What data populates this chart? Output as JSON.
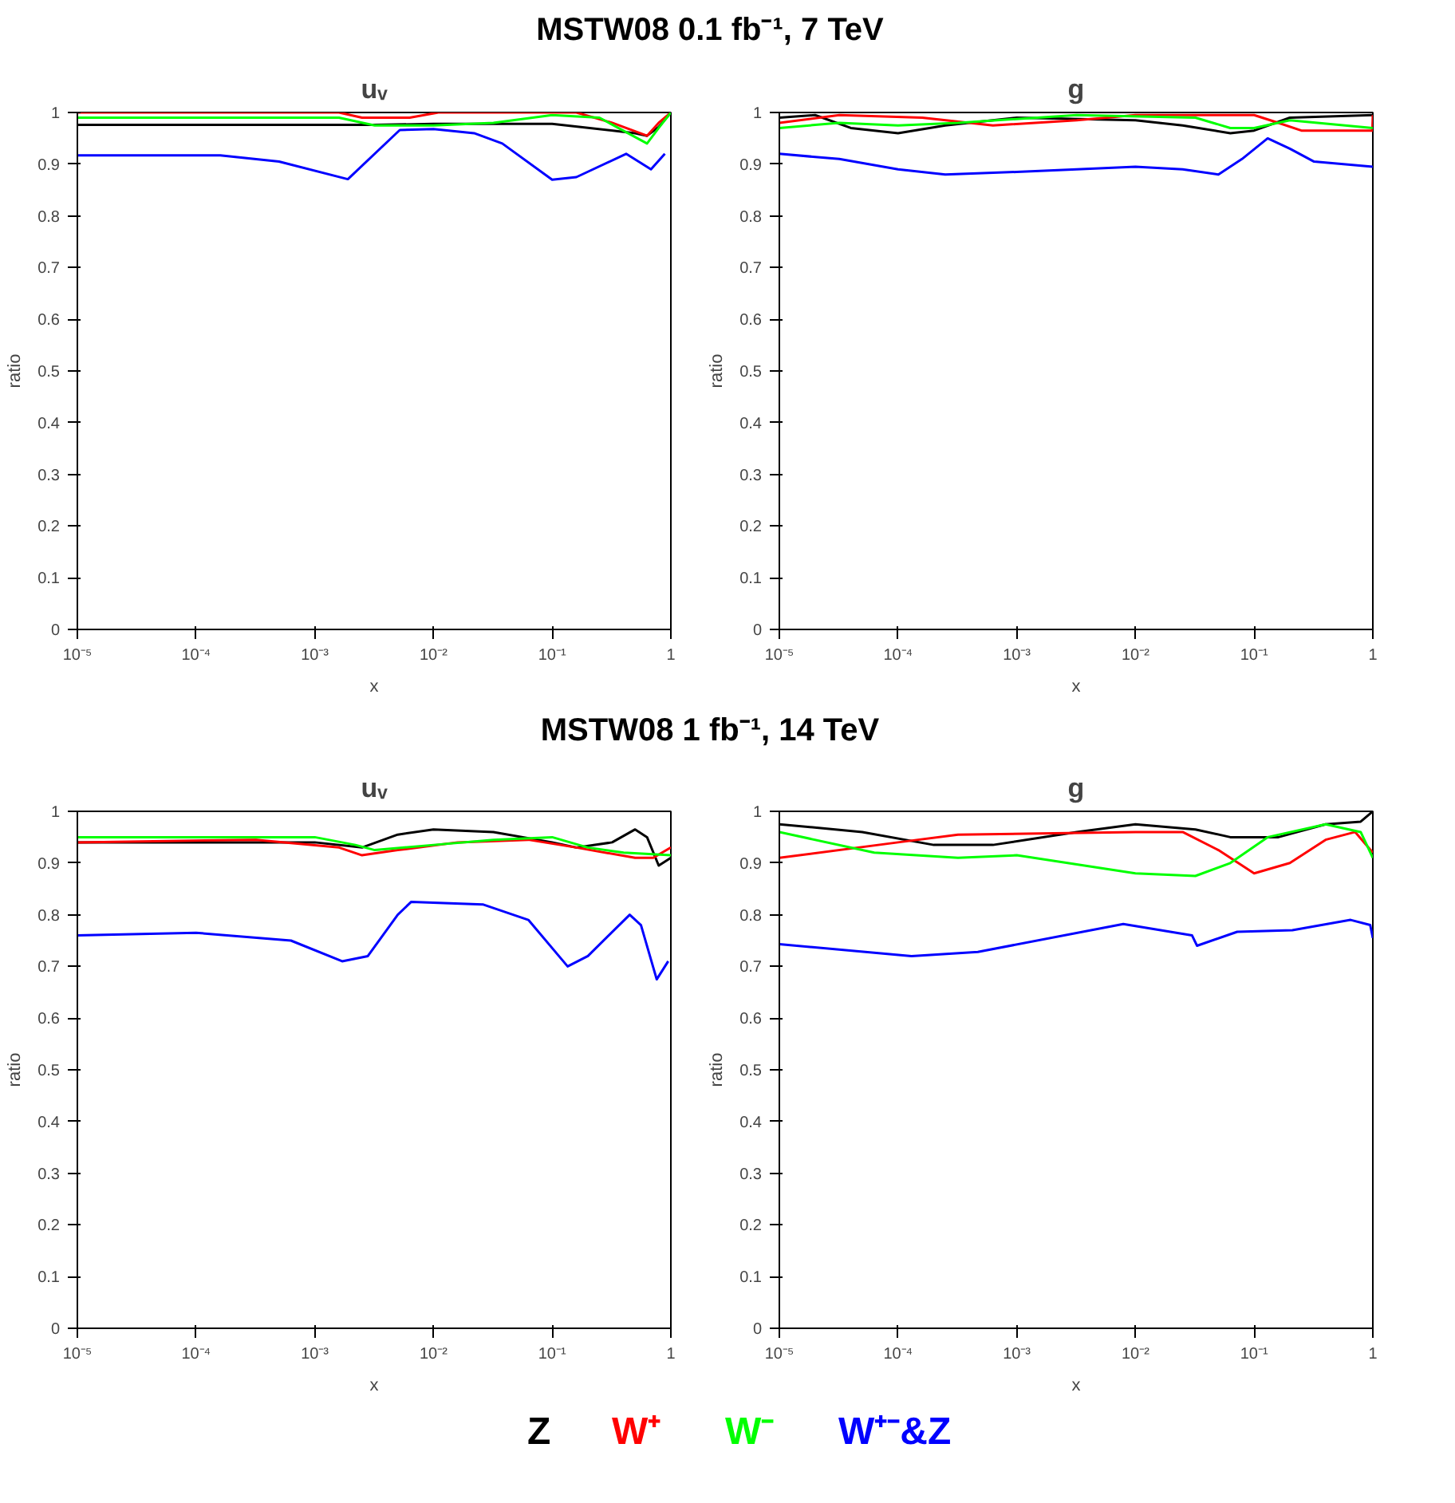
{
  "chart_data": [
    {
      "type": "line",
      "subtitle": "MSTW08 0.1 fb⁻¹, 7 TeV",
      "title": "uᵥ",
      "xlabel": "x",
      "ylabel": "ratio",
      "log": "x",
      "grid": false,
      "xlim": [
        1e-05,
        1
      ],
      "ylim": [
        0,
        1
      ],
      "xticks": [
        {
          "value": 1e-05,
          "label": "10⁻⁵"
        },
        {
          "value": 0.0001,
          "label": "10⁻⁴"
        },
        {
          "value": 0.001,
          "label": "10⁻³"
        },
        {
          "value": 0.01,
          "label": "10⁻²"
        },
        {
          "value": 0.1,
          "label": "10⁻¹"
        },
        1
      ],
      "yticks": [
        0,
        0.1,
        0.2,
        0.3,
        0.4,
        0.5,
        0.6,
        0.7,
        0.8,
        0.9,
        1
      ],
      "series": [
        {
          "color": "#000000",
          "x": [
            1e-05,
            0.0032,
            0.01,
            0.1,
            0.5,
            0.63,
            0.79,
            1
          ],
          "values": [
            0.976,
            0.976,
            0.978,
            0.978,
            0.96,
            0.955,
            0.972,
            1.0
          ]
        },
        {
          "color": "#ff0000",
          "x": [
            1e-05,
            0.0016,
            0.0025,
            0.0063,
            0.011,
            0.16,
            0.32,
            0.63,
            0.79,
            1
          ],
          "values": [
            1.0,
            1.0,
            0.99,
            0.99,
            1.0,
            1.0,
            0.98,
            0.955,
            0.98,
            1.0
          ]
        },
        {
          "color": "#00ff00",
          "x": [
            1e-05,
            0.0016,
            0.0032,
            0.01,
            0.032,
            0.1,
            0.25,
            0.63,
            0.79,
            1
          ],
          "values": [
            0.99,
            0.99,
            0.975,
            0.975,
            0.98,
            0.995,
            0.99,
            0.94,
            0.97,
            1.0
          ]
        },
        {
          "color": "#0000ff",
          "x": [
            1e-05,
            0.00016,
            0.0005,
            0.0019,
            0.0052,
            0.01,
            0.022,
            0.038,
            0.1,
            0.16,
            0.42,
            0.68,
            0.89
          ],
          "values": [
            0.917,
            0.917,
            0.905,
            0.871,
            0.966,
            0.968,
            0.96,
            0.94,
            0.87,
            0.875,
            0.92,
            0.89,
            0.92
          ]
        }
      ]
    },
    {
      "type": "line",
      "title": "g",
      "xlabel": "x",
      "ylabel": "ratio",
      "log": "x",
      "grid": false,
      "xlim": [
        1e-05,
        1
      ],
      "ylim": [
        0,
        1
      ],
      "xticks": [
        {
          "value": 1e-05,
          "label": "10⁻⁵"
        },
        {
          "value": 0.0001,
          "label": "10⁻⁴"
        },
        {
          "value": 0.001,
          "label": "10⁻³"
        },
        {
          "value": 0.01,
          "label": "10⁻²"
        },
        {
          "value": 0.1,
          "label": "10⁻¹"
        },
        1
      ],
      "yticks": [
        0,
        0.1,
        0.2,
        0.3,
        0.4,
        0.5,
        0.6,
        0.7,
        0.8,
        0.9,
        1
      ],
      "series": [
        {
          "color": "#000000",
          "x": [
            1e-05,
            2e-05,
            4e-05,
            0.0001,
            0.00025,
            0.001,
            0.01,
            0.025,
            0.063,
            0.1,
            0.2,
            1
          ],
          "values": [
            0.99,
            0.995,
            0.97,
            0.96,
            0.975,
            0.99,
            0.985,
            0.975,
            0.96,
            0.965,
            0.99,
            0.995
          ]
        },
        {
          "color": "#ff0000",
          "x": [
            1e-05,
            3.2e-05,
            0.00016,
            0.00063,
            0.0032,
            0.01,
            0.1,
            0.16,
            0.25,
            0.99,
            1
          ],
          "values": [
            0.98,
            0.995,
            0.99,
            0.975,
            0.985,
            0.995,
            0.995,
            0.98,
            0.965,
            0.965,
            0.995
          ]
        },
        {
          "color": "#00ff00",
          "x": [
            1e-05,
            3.2e-05,
            0.0001,
            0.00032,
            0.0032,
            0.032,
            0.063,
            0.1,
            0.2,
            1
          ],
          "values": [
            0.97,
            0.98,
            0.975,
            0.98,
            0.995,
            0.99,
            0.97,
            0.97,
            0.985,
            0.97
          ]
        },
        {
          "color": "#0000ff",
          "x": [
            1e-05,
            3.2e-05,
            0.0001,
            0.00025,
            0.001,
            0.0032,
            0.01,
            0.025,
            0.05,
            0.079,
            0.13,
            0.2,
            0.32,
            1
          ],
          "values": [
            0.92,
            0.91,
            0.89,
            0.88,
            0.885,
            0.89,
            0.895,
            0.89,
            0.88,
            0.91,
            0.95,
            0.93,
            0.905,
            0.895
          ]
        }
      ]
    },
    {
      "type": "line",
      "subtitle": "MSTW08 1 fb⁻¹, 14 TeV",
      "title": "uᵥ",
      "xlabel": "x",
      "ylabel": "ratio",
      "log": "x",
      "grid": false,
      "xlim": [
        1e-05,
        1
      ],
      "ylim": [
        0,
        1
      ],
      "xticks": [
        {
          "value": 1e-05,
          "label": "10⁻⁵"
        },
        {
          "value": 0.0001,
          "label": "10⁻⁴"
        },
        {
          "value": 0.001,
          "label": "10⁻³"
        },
        {
          "value": 0.01,
          "label": "10⁻²"
        },
        {
          "value": 0.1,
          "label": "10⁻¹"
        },
        1
      ],
      "yticks": [
        0,
        0.1,
        0.2,
        0.3,
        0.4,
        0.5,
        0.6,
        0.7,
        0.8,
        0.9,
        1
      ],
      "series": [
        {
          "color": "#000000",
          "x": [
            1e-05,
            0.001,
            0.0025,
            0.005,
            0.01,
            0.032,
            0.1,
            0.16,
            0.32,
            0.5,
            0.63,
            0.79,
            1
          ],
          "values": [
            0.94,
            0.94,
            0.93,
            0.955,
            0.965,
            0.96,
            0.94,
            0.93,
            0.94,
            0.965,
            0.95,
            0.895,
            0.91
          ]
        },
        {
          "color": "#ff0000",
          "x": [
            1e-05,
            0.00032,
            0.0016,
            0.0025,
            0.005,
            0.016,
            0.063,
            0.16,
            0.5,
            0.71,
            1
          ],
          "values": [
            0.94,
            0.945,
            0.93,
            0.915,
            0.925,
            0.94,
            0.945,
            0.93,
            0.91,
            0.91,
            0.93
          ]
        },
        {
          "color": "#00ff00",
          "x": [
            1e-05,
            0.001,
            0.0022,
            0.0032,
            0.01,
            0.032,
            0.1,
            0.2,
            0.4,
            1
          ],
          "values": [
            0.95,
            0.95,
            0.935,
            0.925,
            0.935,
            0.945,
            0.95,
            0.93,
            0.92,
            0.915
          ]
        },
        {
          "color": "#0000ff",
          "x": [
            1e-05,
            0.0001,
            0.00063,
            0.0017,
            0.0028,
            0.005,
            0.0065,
            0.026,
            0.063,
            0.135,
            0.2,
            0.45,
            0.56,
            0.76,
            0.95
          ],
          "values": [
            0.76,
            0.765,
            0.75,
            0.71,
            0.72,
            0.8,
            0.825,
            0.82,
            0.79,
            0.7,
            0.72,
            0.8,
            0.78,
            0.675,
            0.71
          ]
        }
      ]
    },
    {
      "type": "line",
      "title": "g",
      "xlabel": "x",
      "ylabel": "ratio",
      "log": "x",
      "grid": false,
      "legend": "bottom",
      "xlim": [
        1e-05,
        1
      ],
      "ylim": [
        0,
        1
      ],
      "xticks": [
        {
          "value": 1e-05,
          "label": "10⁻⁵"
        },
        {
          "value": 0.0001,
          "label": "10⁻⁴"
        },
        {
          "value": 0.001,
          "label": "10⁻³"
        },
        {
          "value": 0.01,
          "label": "10⁻²"
        },
        {
          "value": 0.1,
          "label": "10⁻¹"
        },
        1
      ],
      "yticks": [
        0,
        0.1,
        0.2,
        0.3,
        0.4,
        0.5,
        0.6,
        0.7,
        0.8,
        0.9,
        1
      ],
      "series": [
        {
          "name": "Z",
          "color": "#000000",
          "x": [
            1e-05,
            5e-05,
            0.0002,
            0.00063,
            0.0032,
            0.01,
            0.032,
            0.063,
            0.16,
            0.4,
            0.79,
            1
          ],
          "values": [
            0.975,
            0.96,
            0.935,
            0.935,
            0.96,
            0.975,
            0.965,
            0.95,
            0.95,
            0.975,
            0.98,
            1.0
          ]
        },
        {
          "name": "W⁺",
          "color": "#ff0000",
          "x": [
            1e-05,
            0.0001,
            0.00032,
            0.01,
            0.025,
            0.05,
            0.1,
            0.2,
            0.4,
            0.71,
            1
          ],
          "values": [
            0.91,
            0.94,
            0.955,
            0.96,
            0.96,
            0.925,
            0.88,
            0.9,
            0.945,
            0.96,
            0.92
          ]
        },
        {
          "name": "W⁻",
          "color": "#00ff00",
          "x": [
            1e-05,
            6.3e-05,
            0.00032,
            0.001,
            0.01,
            0.032,
            0.063,
            0.13,
            0.4,
            0.79,
            1
          ],
          "values": [
            0.96,
            0.92,
            0.91,
            0.915,
            0.88,
            0.875,
            0.9,
            0.95,
            0.975,
            0.96,
            0.91
          ]
        },
        {
          "name": "W⁺⁻&Z",
          "color": "#0000ff",
          "x": [
            1e-05,
            0.00013,
            0.00047,
            0.0079,
            0.03,
            0.033,
            0.072,
            0.21,
            0.65,
            0.95,
            1
          ],
          "values": [
            0.743,
            0.72,
            0.728,
            0.782,
            0.76,
            0.74,
            0.767,
            0.77,
            0.79,
            0.78,
            0.755
          ]
        }
      ]
    }
  ]
}
